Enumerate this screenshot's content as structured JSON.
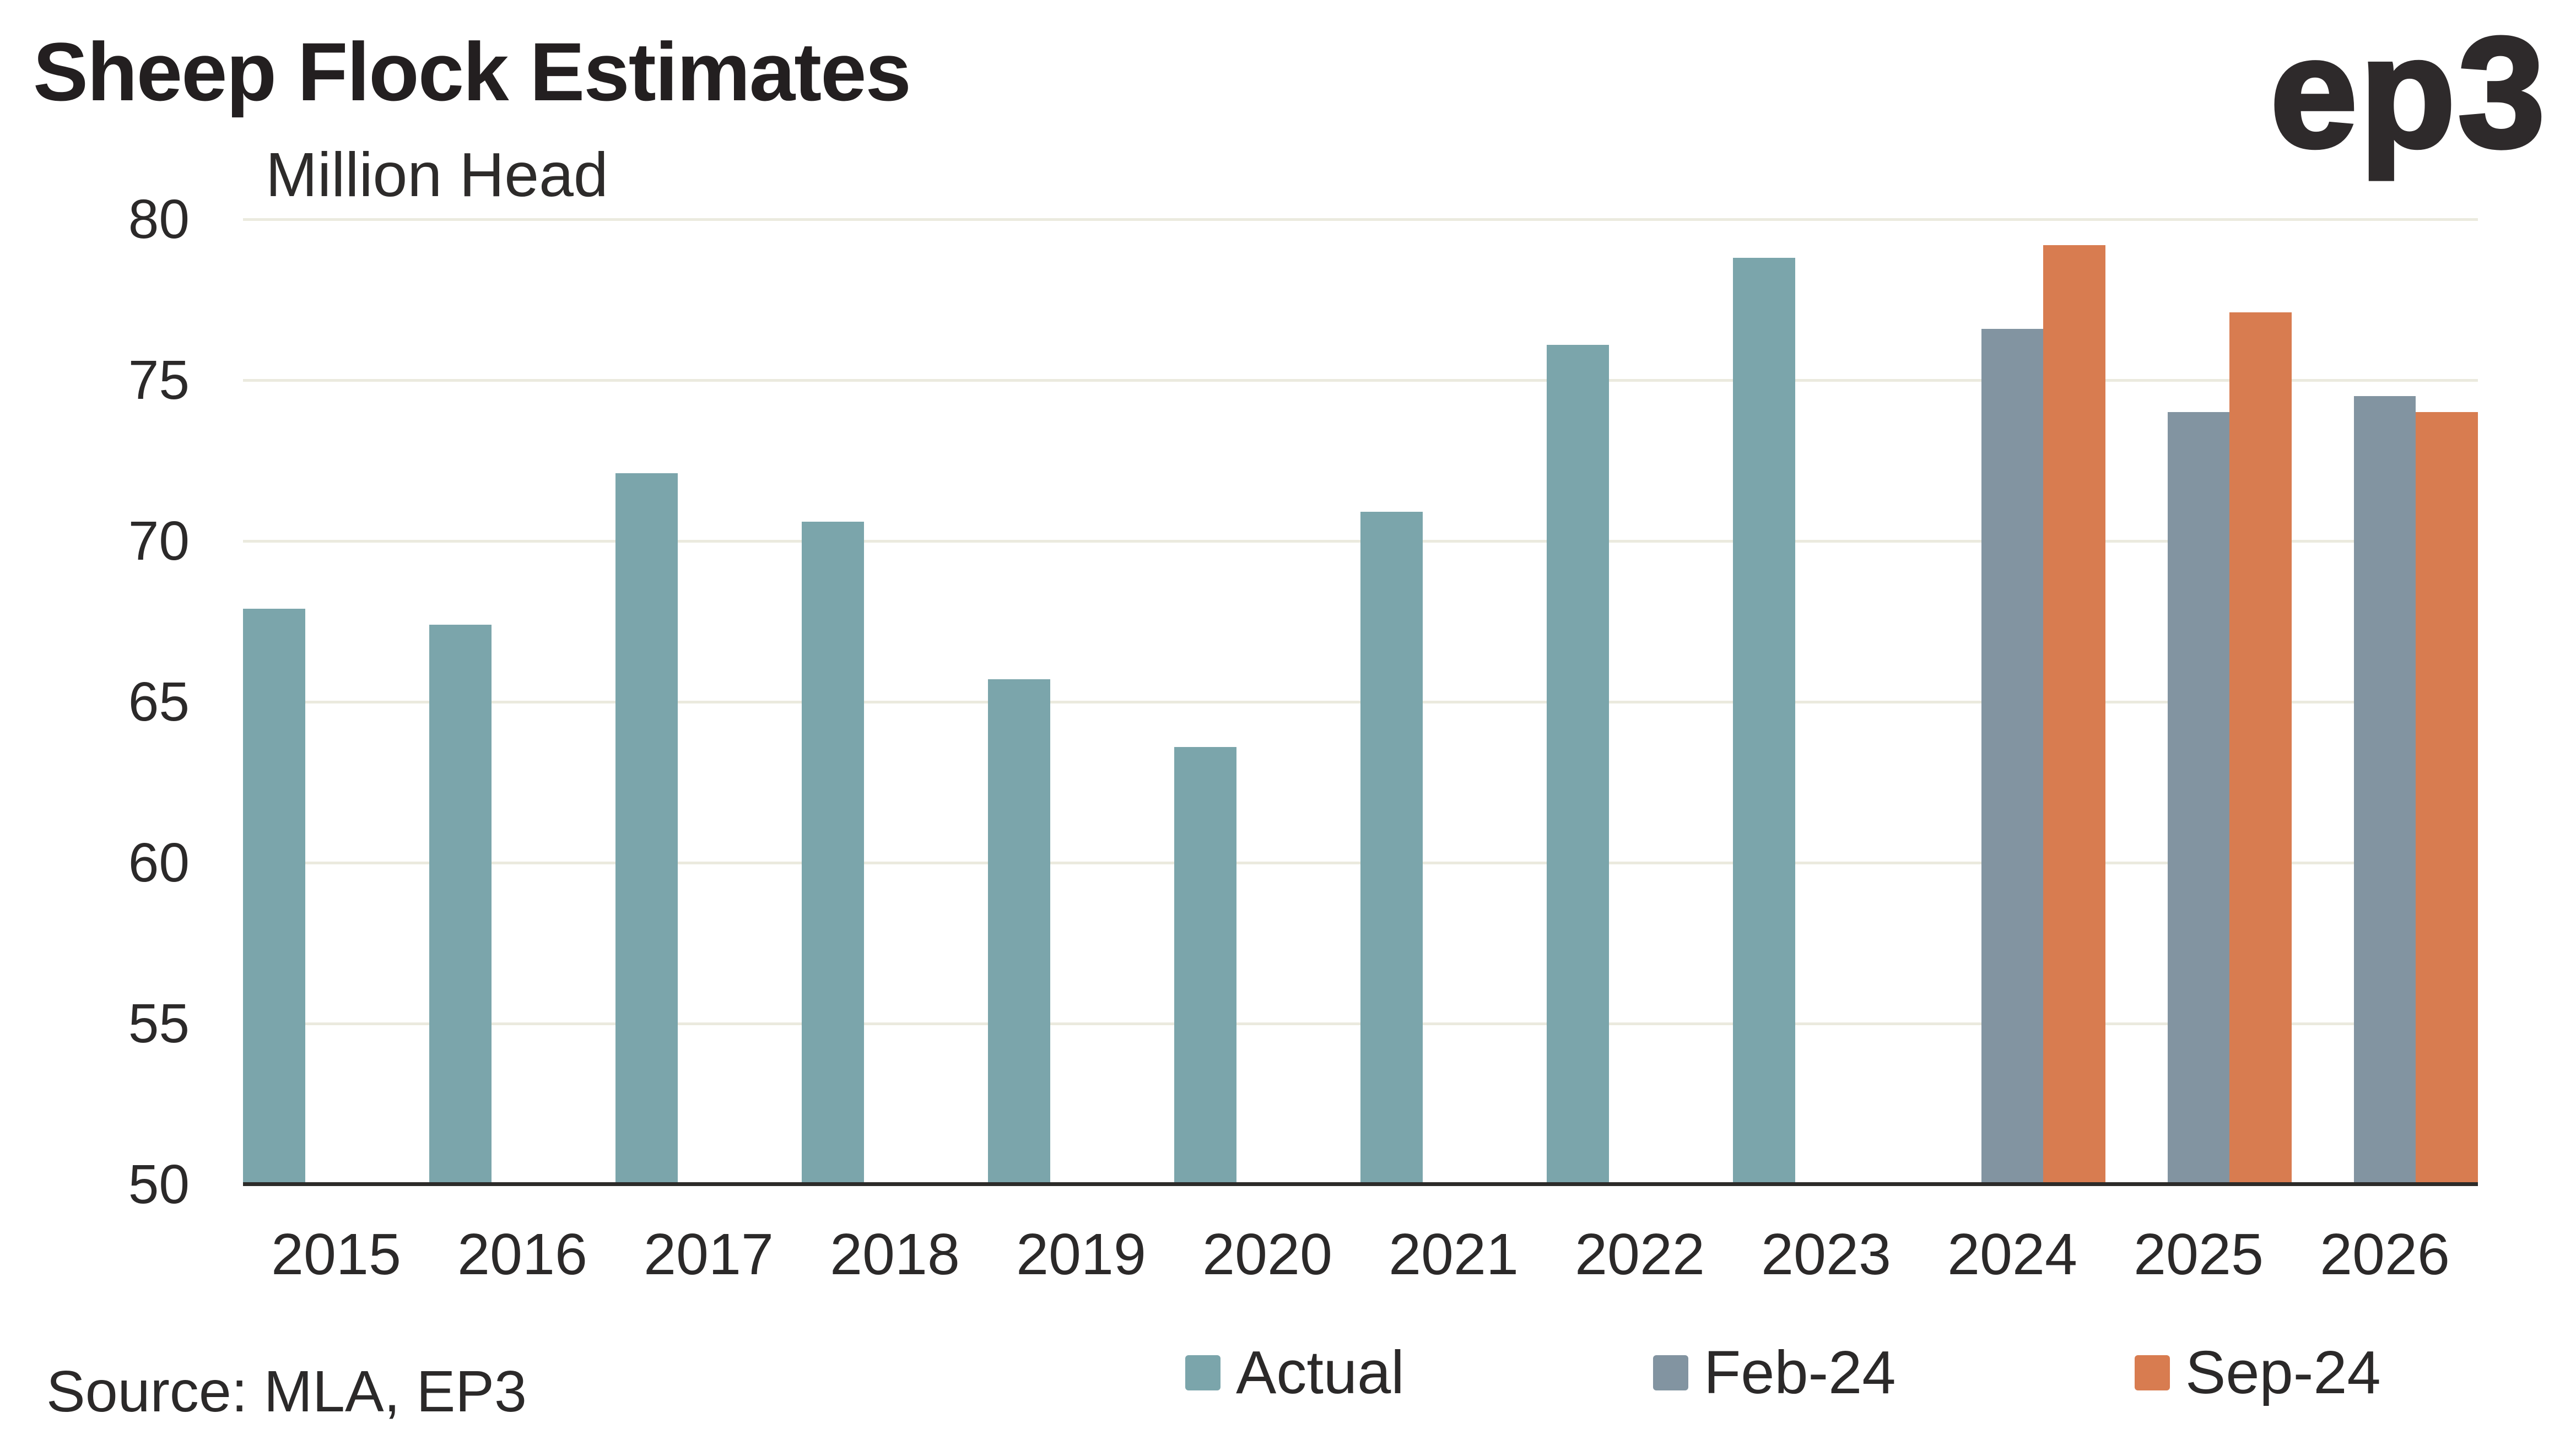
{
  "branding": {
    "logo_text": "ep3"
  },
  "chart_data": {
    "type": "bar",
    "title": "Sheep Flock Estimates",
    "ylabel": "Million Head",
    "xlabel": "",
    "source": "Source: MLA, EP3",
    "categories": [
      "2015",
      "2016",
      "2017",
      "2018",
      "2019",
      "2020",
      "2021",
      "2022",
      "2023",
      "2024",
      "2025",
      "2026"
    ],
    "series": [
      {
        "name": "Actual",
        "color": "#7ba5ab",
        "values": [
          67.9,
          67.4,
          72.1,
          70.6,
          65.7,
          63.6,
          70.9,
          76.1,
          78.8,
          null,
          null,
          null
        ]
      },
      {
        "name": "Feb-24",
        "color": "#8294a1",
        "values": [
          null,
          null,
          null,
          null,
          null,
          null,
          null,
          null,
          null,
          76.6,
          74.0,
          74.5
        ]
      },
      {
        "name": "Sep-24",
        "color": "#d87c50",
        "values": [
          null,
          null,
          null,
          null,
          null,
          null,
          null,
          null,
          null,
          79.2,
          77.1,
          74.0
        ]
      }
    ],
    "ylim": [
      50,
      80
    ],
    "yticks": [
      50,
      55,
      60,
      65,
      70,
      75,
      80
    ],
    "grid": true,
    "legend_position": "bottom",
    "colors": {
      "gridline": "#ebeade",
      "axis_line": "#2c2b29",
      "text": "#2b2929",
      "title_text": "#231f20",
      "background": "#ffffff"
    }
  }
}
